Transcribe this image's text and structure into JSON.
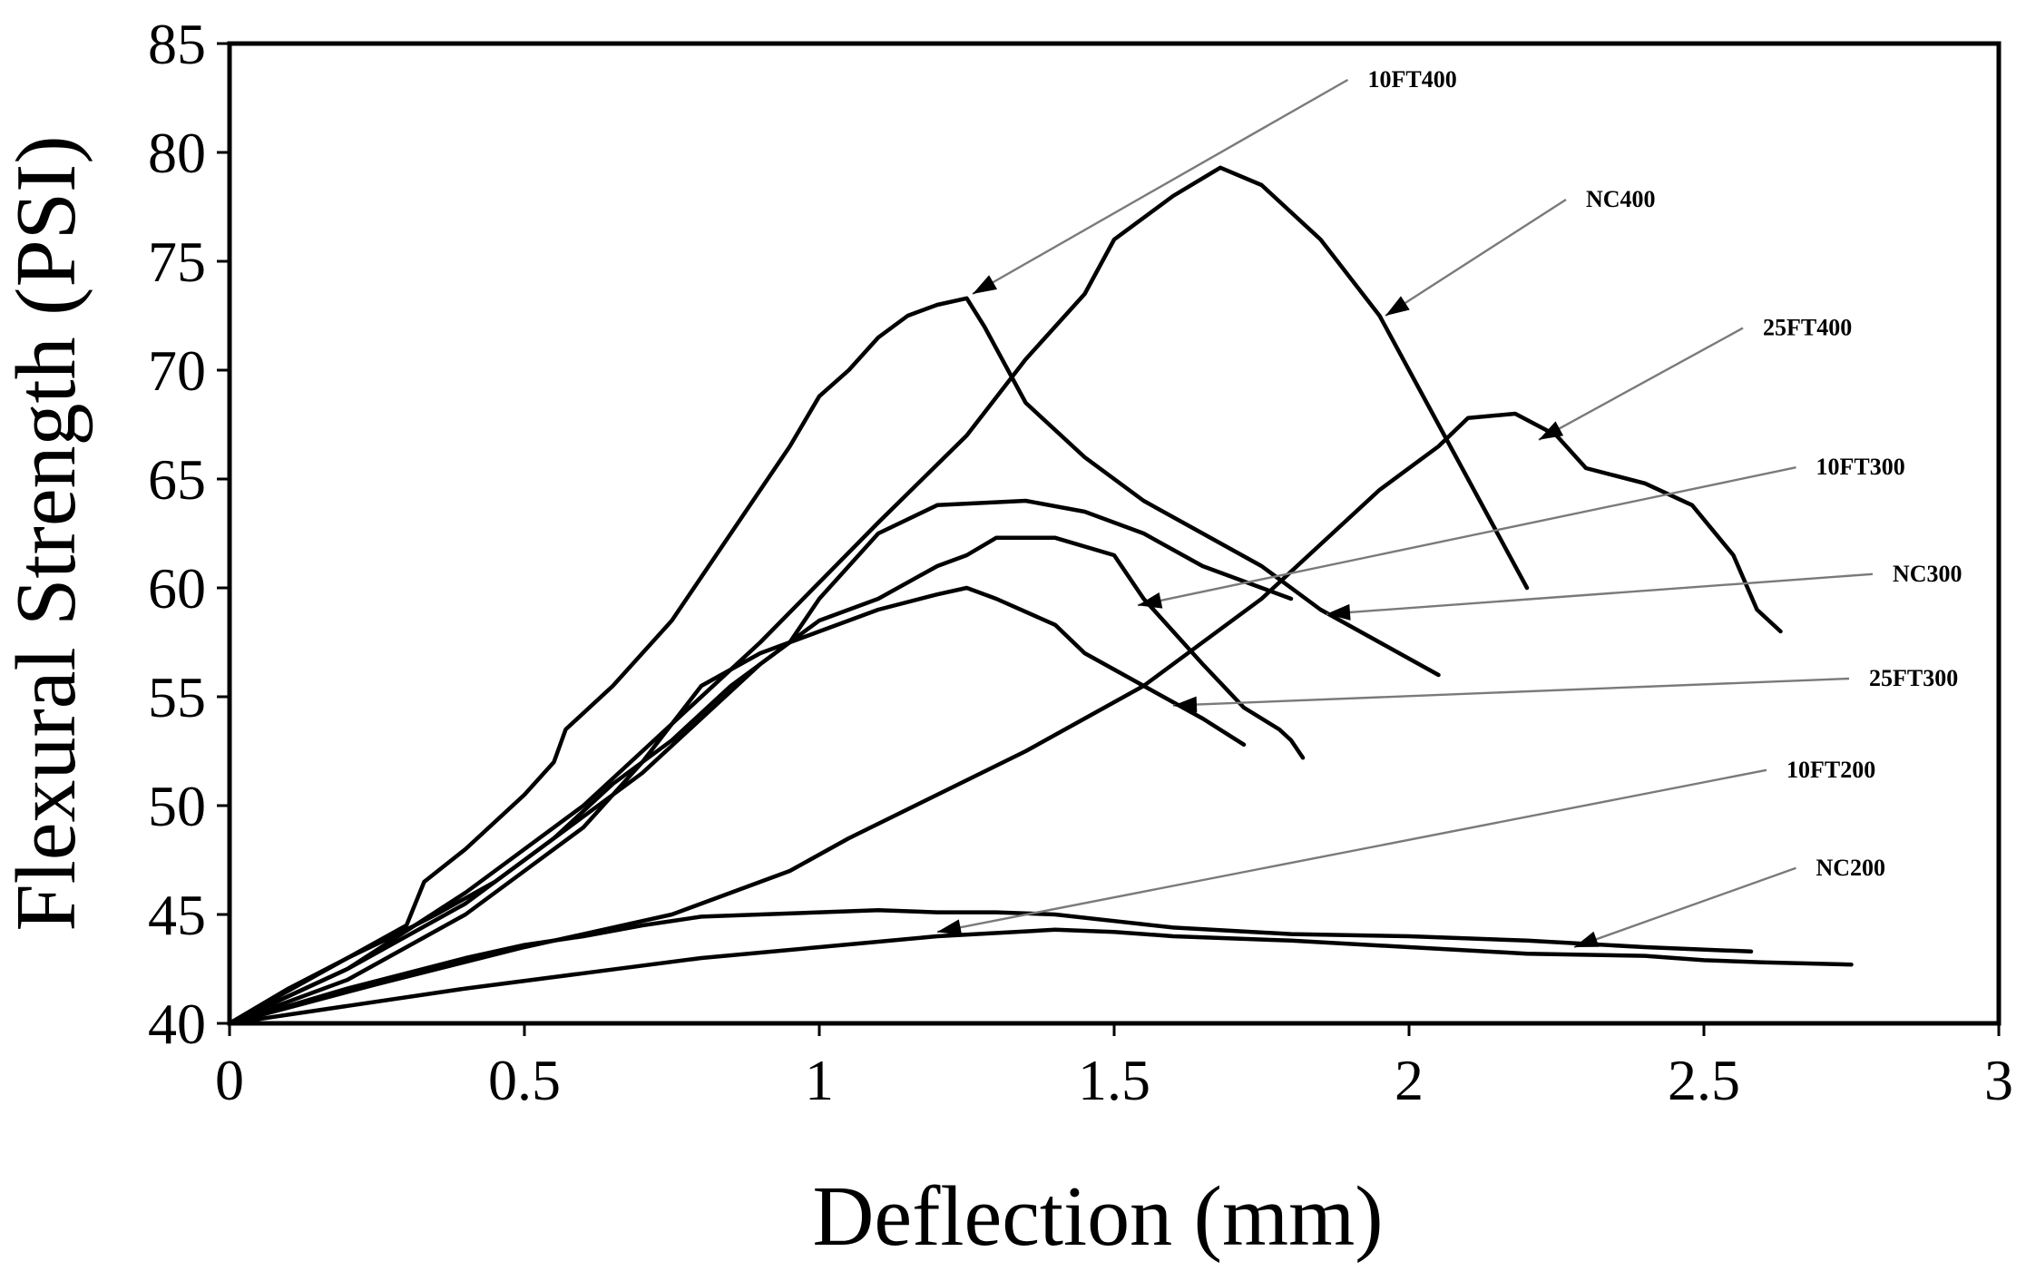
{
  "chart_data": {
    "type": "line",
    "title": "",
    "xlabel": "Deflection (mm)",
    "ylabel": "Flexural Strength (PSI)",
    "xlim": [
      0,
      3
    ],
    "ylim": [
      40,
      85
    ],
    "xticks": [
      0,
      0.5,
      1,
      1.5,
      2,
      2.5,
      3
    ],
    "xtick_labels": [
      "0",
      "0.5",
      "1",
      "1.5",
      "2",
      "2.5",
      "3"
    ],
    "yticks": [
      40,
      45,
      50,
      55,
      60,
      65,
      70,
      75,
      80,
      85
    ],
    "ytick_labels": [
      "40",
      "45",
      "50",
      "55",
      "60",
      "65",
      "70",
      "75",
      "80",
      "85"
    ],
    "grid": false,
    "legend": "annotations with leader arrows",
    "series": [
      {
        "name": "10FT400",
        "arrow_to": [
          1.26,
          73.5
        ],
        "x": [
          0,
          0.1,
          0.2,
          0.3,
          0.33,
          0.4,
          0.5,
          0.55,
          0.57,
          0.65,
          0.75,
          0.85,
          0.95,
          1.0,
          1.05,
          1.1,
          1.15,
          1.2,
          1.25,
          1.28,
          1.35,
          1.45,
          1.55,
          1.65,
          1.75,
          1.85,
          1.95,
          2.05
        ],
        "y": [
          40,
          41.5,
          43.0,
          44.5,
          46.5,
          48.0,
          50.5,
          52.0,
          53.5,
          55.5,
          58.5,
          62.5,
          66.5,
          68.8,
          70.0,
          71.5,
          72.5,
          73.0,
          73.3,
          72.0,
          68.5,
          66.0,
          64.0,
          62.5,
          61.0,
          59.0,
          57.5,
          56.0
        ]
      },
      {
        "name": "NC400",
        "arrow_to": [
          1.96,
          72.5
        ],
        "x": [
          0,
          0.2,
          0.4,
          0.6,
          0.7,
          0.9,
          1.1,
          1.25,
          1.35,
          1.45,
          1.5,
          1.6,
          1.68,
          1.75,
          1.85,
          1.95,
          2.05,
          2.12,
          2.2
        ],
        "y": [
          40,
          42.5,
          46.0,
          50.0,
          52.5,
          57.5,
          63.0,
          67.0,
          70.5,
          73.5,
          76.0,
          78.0,
          79.3,
          78.5,
          76.0,
          72.5,
          67.5,
          64.0,
          60.0
        ]
      },
      {
        "name": "25FT400",
        "arrow_to": [
          2.22,
          66.8
        ],
        "x": [
          0,
          0.25,
          0.5,
          0.75,
          0.95,
          1.05,
          1.2,
          1.35,
          1.45,
          1.55,
          1.65,
          1.75,
          1.85,
          1.95,
          2.05,
          2.1,
          2.18,
          2.25,
          2.3,
          2.4,
          2.48,
          2.55,
          2.59,
          2.63
        ],
        "y": [
          40,
          41.8,
          43.5,
          45.0,
          47.0,
          48.5,
          50.5,
          52.5,
          54.0,
          55.5,
          57.5,
          59.5,
          62.0,
          64.5,
          66.5,
          67.8,
          68.0,
          67.0,
          65.5,
          64.8,
          63.8,
          61.5,
          59.0,
          58.0
        ]
      },
      {
        "name": "10FT300",
        "arrow_to": [
          1.54,
          59.2
        ],
        "x": [
          0,
          0.1,
          0.2,
          0.3,
          0.35,
          0.45,
          0.55,
          0.65,
          0.75,
          0.85,
          0.95,
          1.0,
          1.05,
          1.1,
          1.2,
          1.35,
          1.45,
          1.55,
          1.65,
          1.75,
          1.8
        ],
        "y": [
          40,
          41.6,
          43.0,
          44.3,
          45.0,
          46.5,
          48.5,
          51.0,
          53.0,
          55.5,
          57.5,
          59.5,
          61.0,
          62.5,
          63.8,
          64.0,
          63.5,
          62.5,
          61.0,
          60.0,
          59.5
        ]
      },
      {
        "name": "NC300",
        "arrow_to": [
          1.86,
          58.8
        ],
        "x": [
          0,
          0.2,
          0.4,
          0.6,
          0.7,
          0.8,
          0.9,
          1.0,
          1.1,
          1.2,
          1.25,
          1.3,
          1.4,
          1.5,
          1.55,
          1.65,
          1.72,
          1.78,
          1.8,
          1.82
        ],
        "y": [
          40,
          42.5,
          45.5,
          49.5,
          51.5,
          54.0,
          56.5,
          58.5,
          59.5,
          61.0,
          61.5,
          62.3,
          62.3,
          61.5,
          59.5,
          56.5,
          54.5,
          53.5,
          53.0,
          52.2
        ]
      },
      {
        "name": "25FT300",
        "arrow_to": [
          1.6,
          54.6
        ],
        "x": [
          0,
          0.2,
          0.4,
          0.5,
          0.6,
          0.7,
          0.8,
          0.9,
          1.0,
          1.1,
          1.2,
          1.25,
          1.3,
          1.4,
          1.45,
          1.55,
          1.65,
          1.72
        ],
        "y": [
          40,
          42.0,
          45.0,
          47.0,
          49.0,
          52.0,
          55.5,
          57.0,
          58.0,
          59.0,
          59.7,
          60.0,
          59.5,
          58.3,
          57.0,
          55.5,
          54.0,
          52.8
        ]
      },
      {
        "name": "10FT200",
        "arrow_to": [
          1.2,
          44.2
        ],
        "x": [
          0,
          0.1,
          0.2,
          0.3,
          0.4,
          0.5,
          0.6,
          0.7,
          0.8,
          0.9,
          1.0,
          1.1,
          1.2,
          1.3,
          1.4,
          1.5,
          1.6,
          1.8,
          2.0,
          2.2,
          2.4,
          2.58
        ],
        "y": [
          40,
          40.8,
          41.6,
          42.3,
          43.0,
          43.6,
          44.0,
          44.5,
          44.9,
          45.0,
          45.1,
          45.2,
          45.1,
          45.1,
          45.0,
          44.7,
          44.4,
          44.1,
          44.0,
          43.8,
          43.5,
          43.3
        ]
      },
      {
        "name": "NC200",
        "arrow_to": [
          2.28,
          43.5
        ],
        "x": [
          0,
          0.2,
          0.4,
          0.6,
          0.8,
          1.0,
          1.2,
          1.4,
          1.5,
          1.6,
          1.8,
          2.0,
          2.2,
          2.4,
          2.5,
          2.6,
          2.75
        ],
        "y": [
          40,
          40.8,
          41.6,
          42.3,
          43.0,
          43.5,
          44.0,
          44.3,
          44.2,
          44.0,
          43.8,
          43.5,
          43.2,
          43.1,
          42.9,
          42.8,
          42.7
        ]
      }
    ],
    "annotations": [
      {
        "text": "10FT400",
        "label_at": [
          1.93,
          83.0
        ]
      },
      {
        "text": "NC400",
        "label_at": [
          2.3,
          77.5
        ]
      },
      {
        "text": "25FT400",
        "label_at": [
          2.6,
          71.6
        ]
      },
      {
        "text": "10FT300",
        "label_at": [
          2.69,
          65.2
        ]
      },
      {
        "text": "NC300",
        "label_at": [
          2.82,
          60.3
        ]
      },
      {
        "text": "25FT300",
        "label_at": [
          2.78,
          55.5
        ]
      },
      {
        "text": "10FT200",
        "label_at": [
          2.64,
          51.3
        ]
      },
      {
        "text": "NC200",
        "label_at": [
          2.69,
          46.8
        ]
      }
    ]
  }
}
